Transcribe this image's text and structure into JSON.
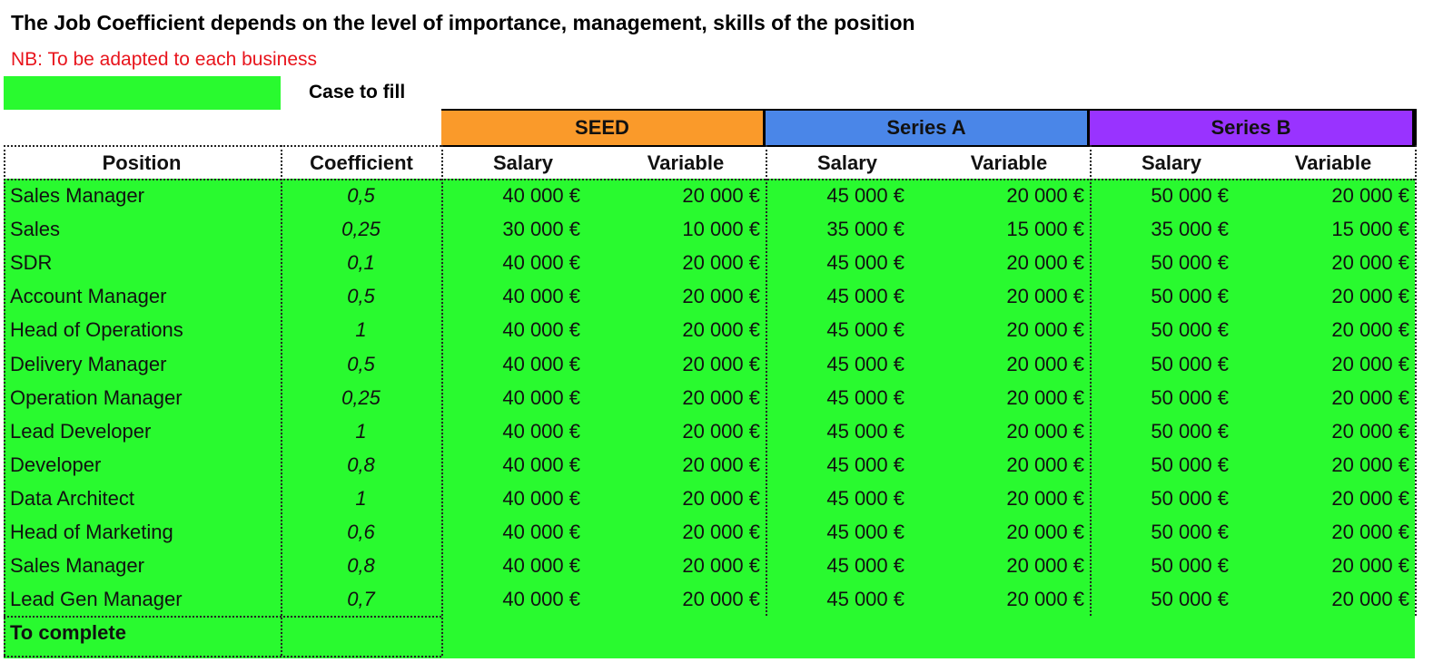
{
  "header": {
    "title": "The Job Coefficient depends on the level of importance, management, skills of the position",
    "note": "NB: To be adapted to each business"
  },
  "legend": {
    "label": "Case to fill"
  },
  "table": {
    "groups": [
      "SEED",
      "Series A",
      "Series B"
    ],
    "columns": [
      "Position",
      "Coefficient",
      "Salary",
      "Variable",
      "Salary",
      "Variable",
      "Salary",
      "Variable"
    ],
    "rows": [
      [
        "Sales Manager",
        "0,5",
        "40 000 €",
        "20 000 €",
        "45 000 €",
        "20 000 €",
        "50 000 €",
        "20 000 €"
      ],
      [
        "Sales",
        "0,25",
        "30 000 €",
        "10 000 €",
        "35 000 €",
        "15 000 €",
        "35 000 €",
        "15 000 €"
      ],
      [
        "SDR",
        "0,1",
        "40 000 €",
        "20 000 €",
        "45 000 €",
        "20 000 €",
        "50 000 €",
        "20 000 €"
      ],
      [
        "Account Manager",
        "0,5",
        "40 000 €",
        "20 000 €",
        "45 000 €",
        "20 000 €",
        "50 000 €",
        "20 000 €"
      ],
      [
        "Head of Operations",
        "1",
        "40 000 €",
        "20 000 €",
        "45 000 €",
        "20 000 €",
        "50 000 €",
        "20 000 €"
      ],
      [
        "Delivery Manager",
        "0,5",
        "40 000 €",
        "20 000 €",
        "45 000 €",
        "20 000 €",
        "50 000 €",
        "20 000 €"
      ],
      [
        "Operation Manager",
        "0,25",
        "40 000 €",
        "20 000 €",
        "45 000 €",
        "20 000 €",
        "50 000 €",
        "20 000 €"
      ],
      [
        "Lead Developer",
        "1",
        "40 000 €",
        "20 000 €",
        "45 000 €",
        "20 000 €",
        "50 000 €",
        "20 000 €"
      ],
      [
        "Developer",
        "0,8",
        "40 000 €",
        "20 000 €",
        "45 000 €",
        "20 000 €",
        "50 000 €",
        "20 000 €"
      ],
      [
        "Data Architect",
        "1",
        "40 000 €",
        "20 000 €",
        "45 000 €",
        "20 000 €",
        "50 000 €",
        "20 000 €"
      ],
      [
        "Head of Marketing",
        "0,6",
        "40 000 €",
        "20 000 €",
        "45 000 €",
        "20 000 €",
        "50 000 €",
        "20 000 €"
      ],
      [
        "Sales Manager",
        "0,8",
        "40 000 €",
        "20 000 €",
        "45 000 €",
        "20 000 €",
        "50 000 €",
        "20 000 €"
      ],
      [
        "Lead Gen Manager",
        "0,7",
        "40 000 €",
        "20 000 €",
        "45 000 €",
        "20 000 €",
        "50 000 €",
        "20 000 €"
      ]
    ],
    "footer": "To complete"
  }
}
